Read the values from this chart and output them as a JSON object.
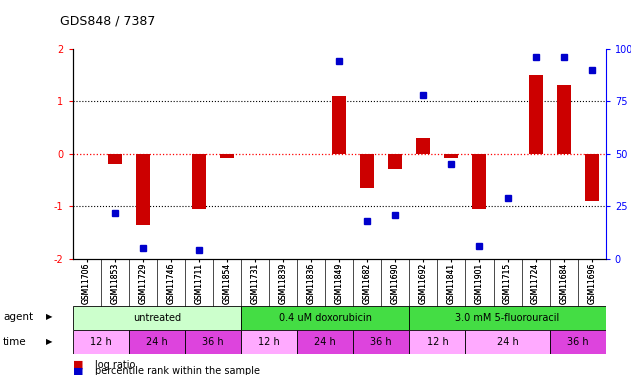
{
  "title": "GDS848 / 7387",
  "samples": [
    "GSM11706",
    "GSM11853",
    "GSM11729",
    "GSM11746",
    "GSM11711",
    "GSM11854",
    "GSM11731",
    "GSM11839",
    "GSM11836",
    "GSM11849",
    "GSM11682",
    "GSM11690",
    "GSM11692",
    "GSM11841",
    "GSM11901",
    "GSM11715",
    "GSM11724",
    "GSM11684",
    "GSM11696"
  ],
  "log_ratio": [
    0.0,
    -0.2,
    -1.35,
    0.0,
    -1.05,
    -0.08,
    0.0,
    0.0,
    0.0,
    1.1,
    -0.65,
    -0.3,
    0.3,
    -0.08,
    -1.05,
    0.0,
    1.5,
    1.3,
    -0.9
  ],
  "percentile_rank_pct": [
    null,
    22,
    5,
    null,
    4,
    null,
    null,
    null,
    null,
    94,
    18,
    21,
    78,
    45,
    6,
    29,
    96,
    96,
    90
  ],
  "agents": [
    {
      "label": "untreated",
      "color": "#ccffcc",
      "start": 0,
      "end": 6
    },
    {
      "label": "0.4 uM doxorubicin",
      "color": "#44dd44",
      "start": 6,
      "end": 12
    },
    {
      "label": "3.0 mM 5-fluorouracil",
      "color": "#44dd44",
      "start": 12,
      "end": 19
    }
  ],
  "time_blocks": [
    {
      "label": "12 h",
      "color": "#ffaaff",
      "start": 0,
      "end": 2
    },
    {
      "label": "24 h",
      "color": "#dd44dd",
      "start": 2,
      "end": 4
    },
    {
      "label": "36 h",
      "color": "#dd44dd",
      "start": 4,
      "end": 6
    },
    {
      "label": "12 h",
      "color": "#ffaaff",
      "start": 6,
      "end": 8
    },
    {
      "label": "24 h",
      "color": "#dd44dd",
      "start": 8,
      "end": 10
    },
    {
      "label": "36 h",
      "color": "#dd44dd",
      "start": 10,
      "end": 12
    },
    {
      "label": "12 h",
      "color": "#ffaaff",
      "start": 12,
      "end": 14
    },
    {
      "label": "24 h",
      "color": "#ffaaff",
      "start": 14,
      "end": 17
    },
    {
      "label": "36 h",
      "color": "#dd44dd",
      "start": 17,
      "end": 19
    }
  ],
  "bar_color": "#cc0000",
  "dot_color": "#0000cc",
  "ylim_left": [
    -2,
    2
  ],
  "ylim_right": [
    0,
    100
  ],
  "yticks_left": [
    -2,
    -1,
    0,
    1,
    2
  ],
  "yticks_right": [
    0,
    25,
    50,
    75,
    100
  ],
  "ytick_labels_right": [
    "0",
    "25",
    "50",
    "75",
    "100%"
  ]
}
